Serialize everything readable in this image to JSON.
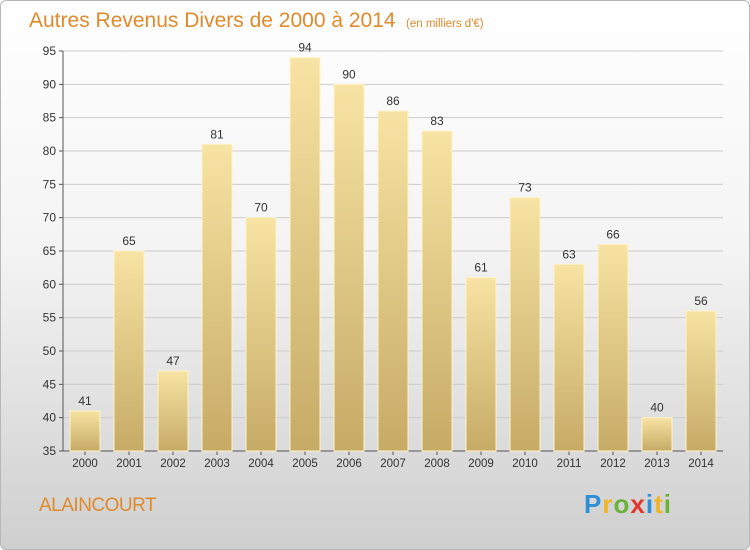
{
  "header": {
    "title": "Autres Revenus Divers de 2000 à 2014",
    "subtitle": "(en milliers d'€)"
  },
  "footer": {
    "town": "ALAINCOURT",
    "logo_letters": [
      "P",
      "r",
      "o",
      "x",
      "i",
      "t",
      "i"
    ]
  },
  "chart_data": {
    "type": "bar",
    "title": "Autres Revenus Divers de 2000 à 2014",
    "subtitle": "(en milliers d'€)",
    "categories": [
      "2000",
      "2001",
      "2002",
      "2003",
      "2004",
      "2005",
      "2006",
      "2007",
      "2008",
      "2009",
      "2010",
      "2011",
      "2012",
      "2013",
      "2014"
    ],
    "values": [
      41,
      65,
      47,
      81,
      70,
      94,
      90,
      86,
      83,
      61,
      73,
      63,
      66,
      40,
      56
    ],
    "ylim": [
      35,
      95
    ],
    "yticks": [
      35,
      40,
      45,
      50,
      55,
      60,
      65,
      70,
      75,
      80,
      85,
      90,
      95
    ],
    "grid": true,
    "bar_color_light": "#f7e3a3",
    "bar_color_dark": "#c6ab66",
    "grid_color": "#cccccc",
    "text_color": "#333333"
  }
}
